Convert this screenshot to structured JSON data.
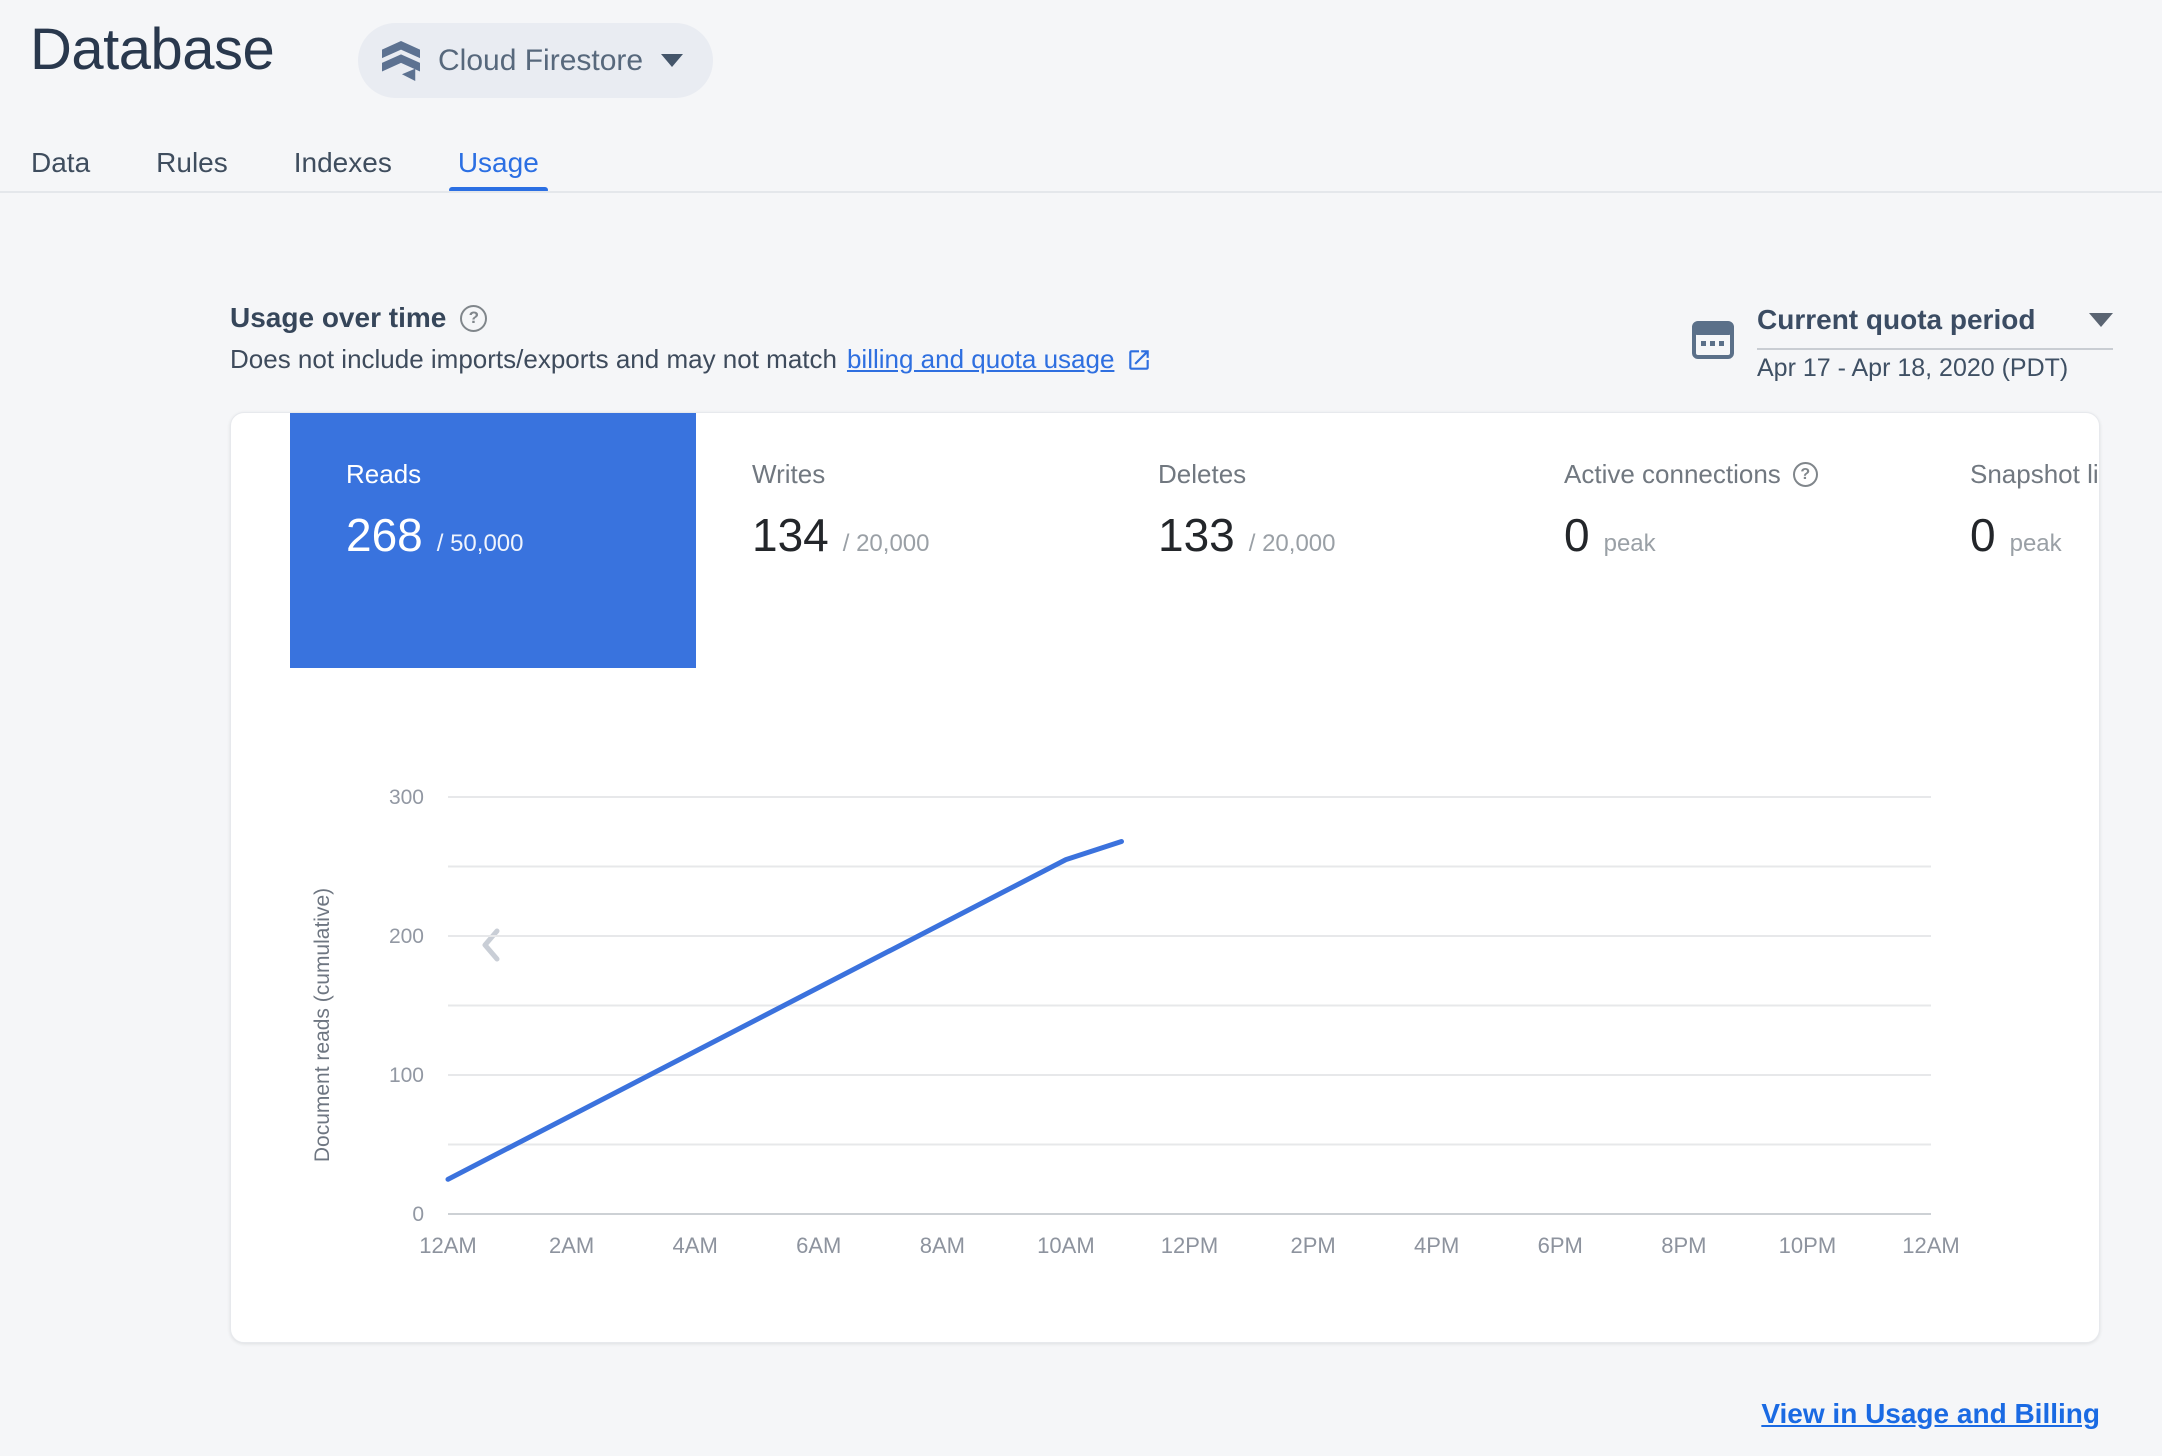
{
  "header": {
    "title": "Database",
    "product_selector": {
      "label": "Cloud Firestore",
      "icon": "firestore-icon"
    }
  },
  "tabs": [
    {
      "label": "Data",
      "active": false
    },
    {
      "label": "Rules",
      "active": false
    },
    {
      "label": "Indexes",
      "active": false
    },
    {
      "label": "Usage",
      "active": true
    }
  ],
  "usage_section": {
    "heading": "Usage over time",
    "help_icon": "help-icon",
    "description": "Does not include imports/exports and may not match",
    "link_text": "billing and quota usage",
    "external_icon": "open-in-new-icon",
    "period": {
      "icon": "calendar-icon",
      "label": "Current quota period",
      "range": "Apr 17 - Apr 18, 2020 (PDT)"
    }
  },
  "metrics": [
    {
      "label": "Reads",
      "value": "268",
      "quota": "/ 50,000",
      "selected": true,
      "has_help": false
    },
    {
      "label": "Writes",
      "value": "134",
      "quota": "/ 20,000",
      "selected": false,
      "has_help": false
    },
    {
      "label": "Deletes",
      "value": "133",
      "quota": "/ 20,000",
      "selected": false,
      "has_help": false
    },
    {
      "label": "Active connections",
      "value": "0",
      "quota": "peak",
      "selected": false,
      "has_help": true
    },
    {
      "label": "Snapshot listeners",
      "value": "0",
      "quota": "peak",
      "selected": false,
      "has_help": false
    }
  ],
  "chart_data": {
    "type": "line",
    "title": "",
    "xlabel": "",
    "ylabel": "Document reads (cumulative)",
    "x_tick_labels": [
      "12AM",
      "2AM",
      "4AM",
      "6AM",
      "8AM",
      "10AM",
      "12PM",
      "2PM",
      "4PM",
      "6PM",
      "8PM",
      "10PM",
      "12AM"
    ],
    "x_hours_range": [
      0,
      24
    ],
    "y_ticks": [
      0,
      100,
      200,
      300
    ],
    "y_minor_step": 50,
    "ylim": [
      0,
      300
    ],
    "grid": "horizontal",
    "legend": "none",
    "series": [
      {
        "name": "Document reads (cumulative)",
        "points": [
          {
            "hour": 0,
            "value": 25
          },
          {
            "hour": 10,
            "value": 255
          },
          {
            "hour": 10.9,
            "value": 268
          }
        ]
      }
    ],
    "line_color": "#3b72dd"
  },
  "footer": {
    "link": "View in Usage and Billing"
  },
  "colors": {
    "page_bg": "#f5f6f8",
    "accent_blue": "#2b6fe3",
    "link_blue": "#1a6ae3",
    "tile_selected_bg": "#3973de",
    "title_color": "#29384d",
    "slate_icon": "#5b7089"
  }
}
